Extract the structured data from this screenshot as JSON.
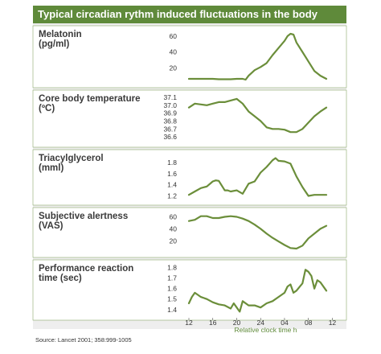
{
  "title": "Typical circadian rythm induced fluctuations in the body",
  "source": "Source: Lancet 2001; 358:999-1005",
  "colors": {
    "accent": "#5f8a3a",
    "line": "#6b8e3a",
    "panel": "#ffffff",
    "border": "#8aa86a",
    "bg": "#eeeeee"
  },
  "chart_data": {
    "type": "line",
    "x_label": "Relative clock time h",
    "x_ticks": [
      "12",
      "16",
      "20",
      "24",
      "04",
      "08",
      "12"
    ],
    "x_range_hours": [
      11,
      35
    ],
    "panels": [
      {
        "title": [
          "Melatonin",
          "(pg/ml)"
        ],
        "yticks": [
          "60",
          "40",
          "20"
        ],
        "ytick_values": [
          60,
          40,
          20
        ],
        "ylim": [
          3,
          66
        ],
        "x": [
          11,
          12,
          13,
          14,
          15,
          16,
          17,
          18,
          19,
          20,
          20.5,
          21,
          22,
          23,
          24,
          25,
          26,
          27,
          27.5,
          28,
          28.5,
          29,
          30,
          31,
          32,
          33,
          34
        ],
        "y": [
          6,
          6,
          6,
          6,
          6,
          5.5,
          5.5,
          5.5,
          6,
          6,
          5,
          10,
          17,
          21,
          26,
          36,
          45,
          54,
          60,
          63,
          62,
          52,
          40,
          28,
          16,
          10,
          6
        ]
      },
      {
        "title": [
          "Core body temperature",
          "(ºC)"
        ],
        "yticks": [
          "37.1",
          "37.0",
          "36.9",
          "36.8",
          "36.7",
          "36.6"
        ],
        "ytick_values": [
          37.1,
          37.0,
          36.9,
          36.8,
          36.7,
          36.6
        ],
        "ylim": [
          36.55,
          37.12
        ],
        "x": [
          11,
          12,
          13,
          14,
          15,
          16,
          17,
          18,
          19,
          20,
          21,
          22,
          23,
          24,
          25,
          26,
          27,
          28,
          29,
          30,
          31,
          32,
          33,
          34
        ],
        "y": [
          36.97,
          37.02,
          37.01,
          37.0,
          37.02,
          37.04,
          37.04,
          37.06,
          37.08,
          37.02,
          36.92,
          36.86,
          36.8,
          36.72,
          36.7,
          36.7,
          36.69,
          36.66,
          36.66,
          36.7,
          36.78,
          36.86,
          36.92,
          36.97
        ]
      },
      {
        "title": [
          "Triacylglycerol",
          "(mml)"
        ],
        "yticks": [
          "1.8",
          "1.6",
          "1.4",
          "1.2"
        ],
        "ytick_values": [
          1.8,
          1.6,
          1.4,
          1.2
        ],
        "ylim": [
          1.15,
          1.93
        ],
        "x": [
          11,
          12,
          13,
          14,
          15,
          15.5,
          16,
          17,
          17.5,
          18,
          19,
          20,
          21,
          22,
          23,
          24,
          25,
          25.5,
          26,
          27,
          28,
          29,
          30,
          31,
          32,
          33,
          34
        ],
        "y": [
          1.22,
          1.28,
          1.34,
          1.37,
          1.46,
          1.48,
          1.47,
          1.3,
          1.3,
          1.28,
          1.3,
          1.24,
          1.42,
          1.46,
          1.62,
          1.72,
          1.84,
          1.88,
          1.83,
          1.82,
          1.78,
          1.55,
          1.36,
          1.2,
          1.22,
          1.22,
          1.22
        ]
      },
      {
        "title": [
          "Subjective alertness",
          "(VAS)"
        ],
        "yticks": [
          "60",
          "40",
          "20"
        ],
        "ytick_values": [
          60,
          40,
          20
        ],
        "ylim": [
          3,
          66
        ],
        "x": [
          11,
          12,
          13,
          14,
          15,
          16,
          17,
          18,
          19,
          20,
          21,
          22,
          23,
          24,
          25,
          26,
          27,
          28,
          29,
          30,
          31,
          32,
          33,
          34
        ],
        "y": [
          53,
          55,
          61,
          61,
          58,
          58,
          60,
          61,
          60,
          57,
          53,
          47,
          40,
          32,
          25,
          19,
          13,
          8,
          7,
          12,
          24,
          32,
          40,
          45
        ]
      },
      {
        "title": [
          "Performance reaction",
          "time (sec)"
        ],
        "yticks": [
          "1.8",
          "1.7",
          "1.6",
          "1.5",
          "1.4"
        ],
        "ytick_values": [
          1.8,
          1.7,
          1.6,
          1.5,
          1.4
        ],
        "ylim": [
          1.36,
          1.82
        ],
        "x": [
          11,
          11.5,
          12,
          12.5,
          13,
          14,
          15,
          16,
          17,
          18,
          18.5,
          19,
          19.5,
          20,
          21,
          22,
          23,
          24,
          25,
          26,
          27,
          27.5,
          28,
          28.5,
          29,
          30,
          30.5,
          31,
          31.5,
          32,
          32.5,
          33,
          34
        ],
        "y": [
          1.46,
          1.52,
          1.56,
          1.54,
          1.52,
          1.5,
          1.47,
          1.45,
          1.44,
          1.41,
          1.46,
          1.42,
          1.38,
          1.48,
          1.44,
          1.44,
          1.42,
          1.46,
          1.48,
          1.52,
          1.56,
          1.62,
          1.64,
          1.56,
          1.58,
          1.65,
          1.78,
          1.76,
          1.72,
          1.6,
          1.68,
          1.66,
          1.58
        ]
      }
    ]
  }
}
